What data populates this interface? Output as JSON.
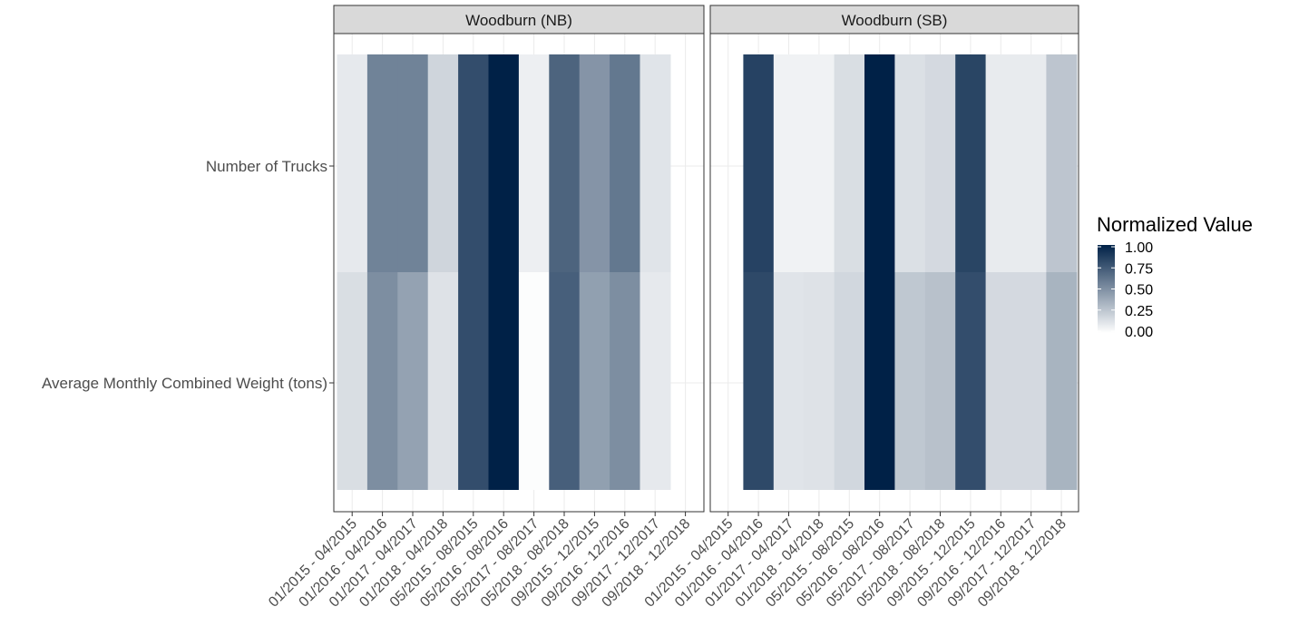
{
  "chart_data": {
    "type": "heatmap",
    "x_categories": [
      "01/2015 - 04/2015",
      "01/2016 - 04/2016",
      "01/2017 - 04/2017",
      "01/2018 - 04/2018",
      "05/2015 - 08/2015",
      "05/2016 - 08/2016",
      "05/2017 - 08/2017",
      "05/2018 - 08/2018",
      "09/2015 - 12/2015",
      "09/2016 - 12/2016",
      "09/2017 - 12/2017",
      "09/2018 - 12/2018"
    ],
    "y_categories": [
      "Number of Trucks",
      "Average Monthly Combined Weight (tons)"
    ],
    "panels": [
      {
        "title": "Woodburn (NB)",
        "values": [
          [
            0.1,
            0.56,
            0.56,
            0.19,
            0.8,
            1.0,
            0.07,
            0.7,
            0.48,
            0.61,
            0.12,
            null
          ],
          [
            0.15,
            0.51,
            0.42,
            0.13,
            0.8,
            1.0,
            0.01,
            0.72,
            0.43,
            0.51,
            0.1,
            null
          ]
        ]
      },
      {
        "title": "Woodburn (SB)",
        "values": [
          [
            null,
            0.85,
            0.06,
            0.06,
            0.15,
            1.0,
            0.14,
            0.17,
            0.84,
            0.09,
            0.09,
            0.26
          ],
          [
            null,
            0.82,
            0.12,
            0.13,
            0.18,
            1.0,
            0.25,
            0.28,
            0.8,
            0.17,
            0.17,
            0.34
          ]
        ]
      }
    ],
    "legend": {
      "title": "Normalized Value",
      "ticks": [
        "1.00",
        "0.75",
        "0.50",
        "0.25",
        "0.00"
      ],
      "low_color": "#ffffff",
      "high_color": "#002147"
    },
    "theme": {
      "grid": true,
      "strip_fill": "#d9d9d9"
    }
  }
}
